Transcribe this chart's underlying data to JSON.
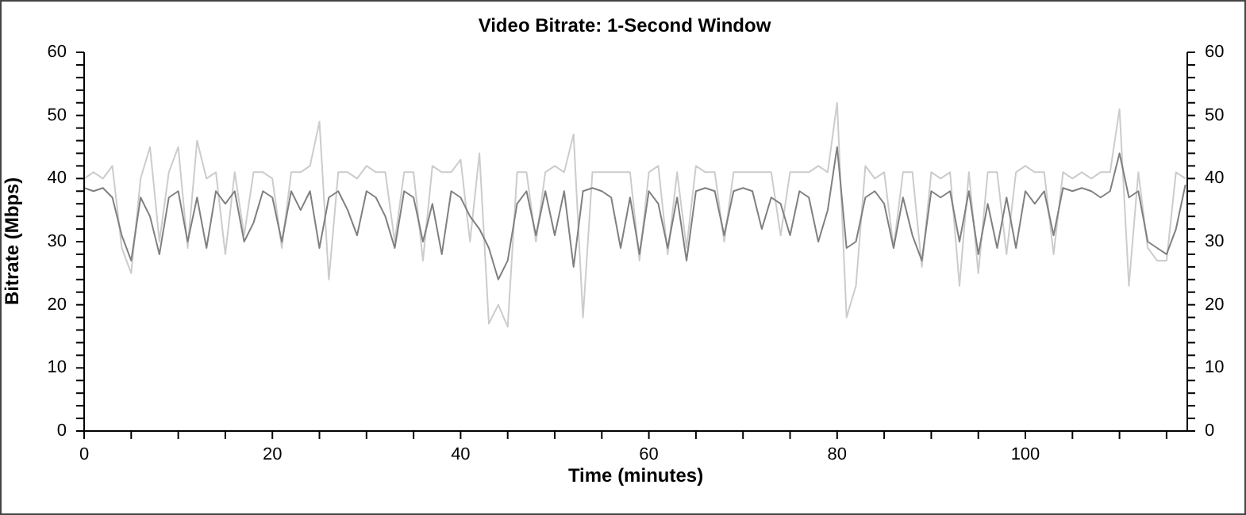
{
  "chart_data": {
    "type": "line",
    "title": "Video Bitrate: 1-Second Window",
    "xlabel": "Time (minutes)",
    "ylabel": "Bitrate (Mbps)",
    "x": [
      0,
      1,
      2,
      3,
      4,
      5,
      6,
      7,
      8,
      9,
      10,
      11,
      12,
      13,
      14,
      15,
      16,
      17,
      18,
      19,
      20,
      21,
      22,
      23,
      24,
      25,
      26,
      27,
      28,
      29,
      30,
      31,
      32,
      33,
      34,
      35,
      36,
      37,
      38,
      39,
      40,
      41,
      42,
      43,
      44,
      45,
      46,
      47,
      48,
      49,
      50,
      51,
      52,
      53,
      54,
      55,
      56,
      57,
      58,
      59,
      60,
      61,
      62,
      63,
      64,
      65,
      66,
      67,
      68,
      69,
      70,
      71,
      72,
      73,
      74,
      75,
      76,
      77,
      78,
      79,
      80,
      81,
      82,
      83,
      84,
      85,
      86,
      87,
      88,
      89,
      90,
      91,
      92,
      93,
      94,
      95,
      96,
      97,
      98,
      99,
      100,
      101,
      102,
      103,
      104,
      105,
      106,
      107,
      108,
      109,
      110,
      111,
      112,
      113,
      114,
      115,
      116,
      117
    ],
    "series": [
      {
        "color": "#cccccc",
        "values": [
          40,
          41,
          40,
          42,
          29,
          25,
          40,
          45,
          30,
          41,
          45,
          29,
          46,
          40,
          41,
          28,
          41,
          31,
          41,
          41,
          40,
          29,
          41,
          41,
          42,
          49,
          24,
          41,
          41,
          40,
          42,
          41,
          41,
          30,
          41,
          41,
          27,
          42,
          41,
          41,
          43,
          30,
          44,
          17,
          20,
          16.5,
          41,
          41,
          30,
          41,
          42,
          41,
          47,
          18,
          41,
          41,
          41,
          41,
          41,
          27,
          41,
          42,
          28,
          41,
          29,
          42,
          41,
          41,
          30,
          41,
          41,
          41,
          41,
          41,
          31,
          41,
          41,
          41,
          42,
          41,
          52,
          18,
          23,
          42,
          40,
          41,
          29,
          41,
          41,
          26,
          41,
          40,
          41,
          23,
          41,
          25,
          41,
          41,
          28,
          41,
          42,
          41,
          41,
          28,
          41,
          40,
          41,
          40,
          41,
          41,
          51,
          23,
          41,
          29,
          27,
          27,
          41,
          40
        ]
      },
      {
        "color": "#808080",
        "values": [
          38.5,
          38,
          38.5,
          37,
          31,
          27,
          37,
          34,
          28,
          37,
          38,
          30,
          37,
          29,
          38,
          36,
          38,
          30,
          33,
          38,
          37,
          30,
          38,
          35,
          38,
          29,
          37,
          38,
          35,
          31,
          38,
          37,
          34,
          29,
          38,
          37,
          30,
          36,
          28,
          38,
          37,
          34,
          32,
          29,
          24,
          27,
          36,
          38,
          31,
          38,
          31,
          38,
          26,
          38,
          38.5,
          38,
          37,
          29,
          37,
          28,
          38,
          36,
          29,
          37,
          27,
          38,
          38.5,
          38,
          31,
          38,
          38.5,
          38,
          32,
          37,
          36,
          31,
          38,
          37,
          30,
          35,
          45,
          29,
          30,
          37,
          38,
          36,
          29,
          37,
          31,
          27,
          38,
          37,
          38,
          30,
          38,
          28,
          36,
          29,
          37,
          29,
          38,
          36,
          38,
          31,
          38.5,
          38,
          38.5,
          38,
          37,
          38,
          44,
          37,
          38,
          30,
          29,
          28,
          32,
          39
        ]
      }
    ],
    "xlim": [
      0,
      117.2
    ],
    "xticks": [
      0,
      {
        "value": 5,
        "label": null
      },
      {
        "value": 10,
        "label": null
      },
      {
        "value": 15,
        "label": null
      },
      20,
      {
        "value": 25,
        "label": null
      },
      {
        "value": 30,
        "label": null
      },
      {
        "value": 35,
        "label": null
      },
      40,
      {
        "value": 45,
        "label": null
      },
      {
        "value": 50,
        "label": null
      },
      {
        "value": 55,
        "label": null
      },
      60,
      {
        "value": 65,
        "label": null
      },
      {
        "value": 70,
        "label": null
      },
      {
        "value": 75,
        "label": null
      },
      80,
      {
        "value": 85,
        "label": null
      },
      {
        "value": 90,
        "label": null
      },
      {
        "value": 95,
        "label": null
      },
      100,
      {
        "value": 105,
        "label": null
      },
      {
        "value": 110,
        "label": null
      },
      {
        "value": 115,
        "label": null
      }
    ],
    "ylim": [
      0,
      60
    ],
    "yticks": [
      0,
      {
        "value": 2,
        "label": null
      },
      {
        "value": 4,
        "label": null
      },
      {
        "value": 6,
        "label": null
      },
      {
        "value": 8,
        "label": null
      },
      10,
      {
        "value": 12,
        "label": null
      },
      {
        "value": 14,
        "label": null
      },
      {
        "value": 16,
        "label": null
      },
      {
        "value": 18,
        "label": null
      },
      20,
      {
        "value": 22,
        "label": null
      },
      {
        "value": 24,
        "label": null
      },
      {
        "value": 26,
        "label": null
      },
      {
        "value": 28,
        "label": null
      },
      30,
      {
        "value": 32,
        "label": null
      },
      {
        "value": 34,
        "label": null
      },
      {
        "value": 36,
        "label": null
      },
      {
        "value": 38,
        "label": null
      },
      40,
      {
        "value": 42,
        "label": null
      },
      {
        "value": 44,
        "label": null
      },
      {
        "value": 46,
        "label": null
      },
      {
        "value": 48,
        "label": null
      },
      50,
      {
        "value": 52,
        "label": null
      },
      {
        "value": 54,
        "label": null
      },
      {
        "value": 56,
        "label": null
      },
      {
        "value": 58,
        "label": null
      },
      60
    ],
    "y2lim": [
      0,
      60
    ],
    "y2ticks": [
      0,
      {
        "value": 2,
        "label": null
      },
      {
        "value": 4,
        "label": null
      },
      {
        "value": 6,
        "label": null
      },
      {
        "value": 8,
        "label": null
      },
      10,
      {
        "value": 12,
        "label": null
      },
      {
        "value": 14,
        "label": null
      },
      {
        "value": 16,
        "label": null
      },
      {
        "value": 18,
        "label": null
      },
      20,
      {
        "value": 22,
        "label": null
      },
      {
        "value": 24,
        "label": null
      },
      {
        "value": 26,
        "label": null
      },
      {
        "value": 28,
        "label": null
      },
      30,
      {
        "value": 32,
        "label": null
      },
      {
        "value": 34,
        "label": null
      },
      {
        "value": 36,
        "label": null
      },
      {
        "value": 38,
        "label": null
      },
      40,
      {
        "value": 42,
        "label": null
      },
      {
        "value": 44,
        "label": null
      },
      {
        "value": 46,
        "label": null
      },
      {
        "value": 48,
        "label": null
      },
      50,
      {
        "value": 52,
        "label": null
      },
      {
        "value": 54,
        "label": null
      },
      {
        "value": 56,
        "label": null
      },
      {
        "value": 58,
        "label": null
      },
      60
    ],
    "grid": false,
    "marker": "none",
    "line_style": "solid"
  }
}
